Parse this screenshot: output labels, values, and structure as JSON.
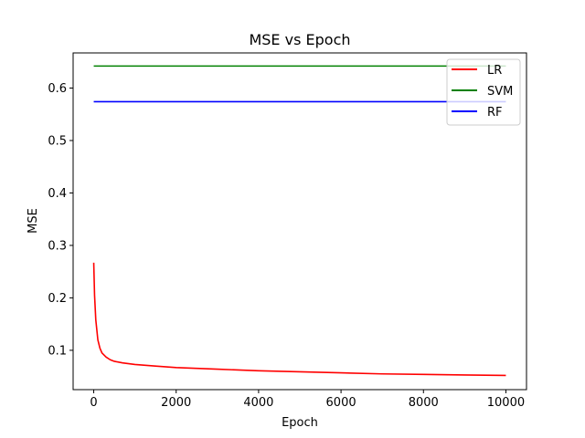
{
  "chart_data": {
    "type": "line",
    "title": "MSE vs Epoch",
    "xlabel": "Epoch",
    "ylabel": "MSE",
    "xlim": [
      -500,
      10500
    ],
    "ylim": [
      0.025,
      0.667
    ],
    "xticks": [
      0,
      2000,
      4000,
      6000,
      8000,
      10000
    ],
    "xtick_labels": [
      "0",
      "2000",
      "4000",
      "6000",
      "8000",
      "10000"
    ],
    "yticks": [
      0.1,
      0.2,
      0.3,
      0.4,
      0.5,
      0.6
    ],
    "ytick_labels": [
      "0.1",
      "0.2",
      "0.3",
      "0.4",
      "0.5",
      "0.6"
    ],
    "grid": false,
    "legend_position": "top-right",
    "series": [
      {
        "name": "LR",
        "color": "#ff0000",
        "x": [
          0,
          20,
          50,
          100,
          150,
          200,
          300,
          400,
          500,
          700,
          1000,
          1500,
          2000,
          3000,
          4000,
          5000,
          6000,
          7000,
          8000,
          9000,
          10000
        ],
        "y": [
          0.267,
          0.205,
          0.158,
          0.12,
          0.104,
          0.095,
          0.087,
          0.082,
          0.079,
          0.076,
          0.073,
          0.07,
          0.067,
          0.064,
          0.061,
          0.059,
          0.057,
          0.055,
          0.054,
          0.053,
          0.052
        ]
      },
      {
        "name": "SVM",
        "color": "#008000",
        "x": [
          0,
          10000
        ],
        "y": [
          0.642,
          0.642
        ]
      },
      {
        "name": "RF",
        "color": "#0000ff",
        "x": [
          0,
          10000
        ],
        "y": [
          0.574,
          0.574
        ]
      }
    ]
  }
}
